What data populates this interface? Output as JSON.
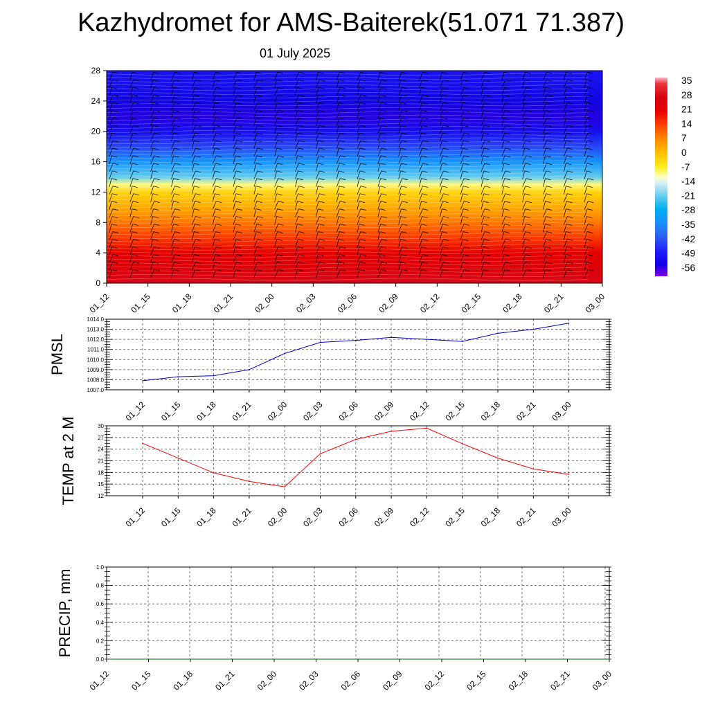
{
  "title": "Kazhydromet for AMS-Baiterek(51.071 71.387)",
  "subtitle": "01 July 2025",
  "colors": {
    "pmsl_line": "#0000cc",
    "temp_line": "#ff0000",
    "precip_line": "#006400",
    "grid": "#555555",
    "barb": "#000000"
  },
  "colorbar": {
    "labels": [
      "35",
      "28",
      "21",
      "14",
      "7",
      "0",
      "-7",
      "-14",
      "-21",
      "-28",
      "-35",
      "-42",
      "-49",
      "-56"
    ],
    "stops": [
      {
        "value": 38,
        "color": "#ffb3c6"
      },
      {
        "value": 35,
        "color": "#e8383d"
      },
      {
        "value": 28,
        "color": "#d60010"
      },
      {
        "value": 21,
        "color": "#e60000"
      },
      {
        "value": 14,
        "color": "#ff4400"
      },
      {
        "value": 7,
        "color": "#ff8c00"
      },
      {
        "value": 0,
        "color": "#ffc000"
      },
      {
        "value": -7,
        "color": "#ffee20"
      },
      {
        "value": -12,
        "color": "#ffffc0"
      },
      {
        "value": -15,
        "color": "#d8f0f8"
      },
      {
        "value": -21,
        "color": "#70d0f0"
      },
      {
        "value": -28,
        "color": "#00b0f0"
      },
      {
        "value": -35,
        "color": "#1890ff"
      },
      {
        "value": -42,
        "color": "#3060f0"
      },
      {
        "value": -49,
        "color": "#2020ff"
      },
      {
        "value": -56,
        "color": "#1000e0"
      },
      {
        "value": -62,
        "color": "#8000e8"
      }
    ]
  },
  "chart_data": [
    {
      "type": "heatmap",
      "title": "",
      "xlabel": "",
      "ylabel": "",
      "x_tick_labels": [
        "01_12",
        "01_15",
        "01_18",
        "01_21",
        "02_00",
        "02_03",
        "02_06",
        "02_09",
        "02_12",
        "02_15",
        "02_18",
        "02_21",
        "03_00"
      ],
      "y_tick_labels": [
        "0",
        "4",
        "8",
        "12",
        "16",
        "20",
        "24",
        "28"
      ],
      "ylim": [
        0,
        28
      ],
      "temperature_profile": [
        {
          "level": 0,
          "value": 29
        },
        {
          "level": 2,
          "value": 25
        },
        {
          "level": 4,
          "value": 21
        },
        {
          "level": 6,
          "value": 15
        },
        {
          "level": 8,
          "value": 9
        },
        {
          "level": 10,
          "value": 3
        },
        {
          "level": 12,
          "value": -3
        },
        {
          "level": 13,
          "value": -10
        },
        {
          "level": 14,
          "value": -22
        },
        {
          "level": 16,
          "value": -34
        },
        {
          "level": 18,
          "value": -45
        },
        {
          "level": 20,
          "value": -53
        },
        {
          "level": 22,
          "value": -57
        },
        {
          "level": 24,
          "value": -55
        },
        {
          "level": 26,
          "value": -53
        },
        {
          "level": 28,
          "value": -52
        }
      ],
      "wind_barb_levels": [
        0.7,
        1.7,
        2.7,
        3.7,
        4.7,
        5.7,
        6.7,
        7.7,
        8.7,
        9.7,
        10.7,
        11.7,
        12.7,
        13.7,
        14.7,
        15.7,
        16.7,
        17.7,
        18.7,
        19.7,
        20.7,
        21.7,
        22.7,
        23.7,
        24.7,
        25.7,
        26.7
      ]
    },
    {
      "type": "line",
      "title": "",
      "xlabel": "",
      "ylabel": "PMSL",
      "categories": [
        "01_12",
        "01_15",
        "01_18",
        "01_21",
        "02_00",
        "02_03",
        "02_06",
        "02_09",
        "02_12",
        "02_15",
        "02_18",
        "02_21",
        "03_00"
      ],
      "ylim": [
        1007.0,
        1014.0
      ],
      "y_tick_labels": [
        "1007.0",
        "1008.0",
        "1009.0",
        "1010.0",
        "1011.0",
        "1012.0",
        "1013.0",
        "1014.0"
      ],
      "series": [
        {
          "values": [
            1007.9,
            1008.3,
            1008.4,
            1009.0,
            1010.6,
            1011.7,
            1011.9,
            1012.2,
            1012.0,
            1011.8,
            1012.6,
            1013.0,
            1013.6
          ]
        }
      ],
      "grid": true
    },
    {
      "type": "line",
      "title": "",
      "xlabel": "",
      "ylabel": "TEMP at 2 M",
      "categories": [
        "01_12",
        "01_15",
        "01_18",
        "01_21",
        "02_00",
        "02_03",
        "02_06",
        "02_09",
        "02_12",
        "02_15",
        "02_18",
        "02_21",
        "03_00"
      ],
      "ylim": [
        12,
        30
      ],
      "y_tick_labels": [
        "12",
        "15",
        "18",
        "21",
        "24",
        "27",
        "30"
      ],
      "series": [
        {
          "values": [
            25.5,
            21.7,
            17.9,
            15.7,
            14.3,
            22.8,
            26.5,
            28.6,
            29.4,
            25.4,
            21.7,
            18.9,
            17.5
          ]
        }
      ],
      "grid": true
    },
    {
      "type": "line",
      "title": "",
      "xlabel": "",
      "ylabel": "PRECIP, mm",
      "categories": [
        "01_12",
        "01_15",
        "01_18",
        "01_21",
        "02_00",
        "02_03",
        "02_06",
        "02_09",
        "02_12",
        "02_15",
        "02_18",
        "02_21",
        "03_00"
      ],
      "ylim": [
        0.0,
        1.0
      ],
      "y_tick_labels": [
        "0.0",
        "0.2",
        "0.4",
        "0.6",
        "0.8",
        "1.0"
      ],
      "series": [
        {
          "values": [
            0,
            0,
            0,
            0,
            0,
            0,
            0,
            0,
            0,
            0,
            0,
            0,
            0
          ]
        }
      ],
      "grid": true
    }
  ]
}
